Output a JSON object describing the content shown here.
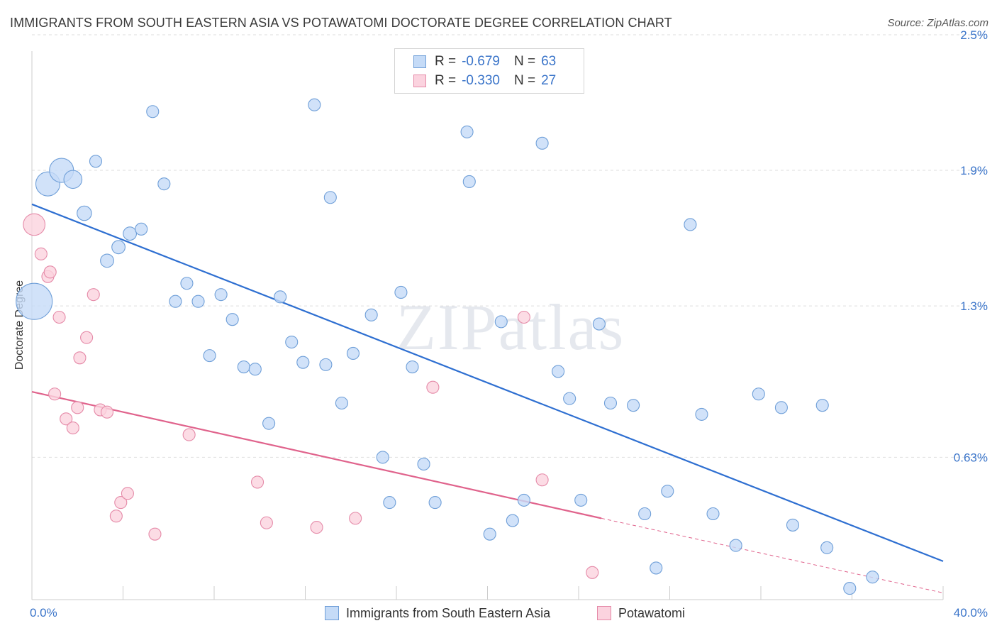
{
  "title": "IMMIGRANTS FROM SOUTH EASTERN ASIA VS POTAWATOMI DOCTORATE DEGREE CORRELATION CHART",
  "source": "Source: ZipAtlas.com",
  "legend": {
    "r_label": "R =",
    "n_label": "N =",
    "series1": {
      "r": "-0.679",
      "n": "63"
    },
    "series2": {
      "r": "-0.330",
      "n": "27"
    }
  },
  "colors": {
    "blue_fill": "#c5dbf7",
    "blue_stroke": "#6f9fd8",
    "blue_line": "#2e6fd1",
    "pink_fill": "#fbd3df",
    "pink_stroke": "#e58aa8",
    "pink_line": "#e0638c"
  },
  "chart_data": {
    "type": "scatter",
    "title": "IMMIGRANTS FROM SOUTH EASTERN ASIA VS POTAWATOMI DOCTORATE DEGREE CORRELATION CHART",
    "xlabel": "",
    "ylabel": "Doctorate Degree",
    "xlim": [
      0,
      40
    ],
    "ylim": [
      0,
      2.4
    ],
    "x_tick_labels": [
      {
        "value": 0,
        "label": "0.0%"
      },
      {
        "value": 40,
        "label": "40.0%"
      }
    ],
    "y_tick_labels": [
      {
        "value": 0.63,
        "label": "0.63%"
      },
      {
        "value": 1.3,
        "label": "1.3%"
      },
      {
        "value": 1.9,
        "label": "1.9%"
      },
      {
        "value": 2.5,
        "label": "2.5%"
      }
    ],
    "watermark": "ZIPatlas",
    "series": [
      {
        "name": "Immigrants from South Eastern Asia",
        "color": "blue",
        "trend": {
          "x0": 0,
          "y0": 1.75,
          "x1": 40,
          "y1": 0.17
        },
        "points": [
          {
            "x": 0.1,
            "y": 1.32,
            "s": 3
          },
          {
            "x": 0.7,
            "y": 1.84,
            "s": 2
          },
          {
            "x": 1.3,
            "y": 1.9,
            "s": 2
          },
          {
            "x": 1.8,
            "y": 1.86,
            "s": 1.5
          },
          {
            "x": 2.3,
            "y": 1.71,
            "s": 1.2
          },
          {
            "x": 2.8,
            "y": 1.94,
            "s": 1
          },
          {
            "x": 3.3,
            "y": 1.5,
            "s": 1.1
          },
          {
            "x": 3.8,
            "y": 1.56,
            "s": 1.1
          },
          {
            "x": 4.3,
            "y": 1.62,
            "s": 1.1
          },
          {
            "x": 4.8,
            "y": 1.64,
            "s": 1
          },
          {
            "x": 5.3,
            "y": 2.16,
            "s": 1
          },
          {
            "x": 5.8,
            "y": 1.84,
            "s": 1
          },
          {
            "x": 6.3,
            "y": 1.32,
            "s": 1
          },
          {
            "x": 6.8,
            "y": 1.4,
            "s": 1
          },
          {
            "x": 7.3,
            "y": 1.32,
            "s": 1
          },
          {
            "x": 7.8,
            "y": 1.08,
            "s": 1
          },
          {
            "x": 8.3,
            "y": 1.35,
            "s": 1
          },
          {
            "x": 8.8,
            "y": 1.24,
            "s": 1
          },
          {
            "x": 9.3,
            "y": 1.03,
            "s": 1
          },
          {
            "x": 9.8,
            "y": 1.02,
            "s": 1
          },
          {
            "x": 10.4,
            "y": 0.78,
            "s": 1
          },
          {
            "x": 10.9,
            "y": 1.34,
            "s": 1
          },
          {
            "x": 11.4,
            "y": 1.14,
            "s": 1
          },
          {
            "x": 11.9,
            "y": 1.05,
            "s": 1
          },
          {
            "x": 12.4,
            "y": 2.19,
            "s": 1
          },
          {
            "x": 12.9,
            "y": 1.04,
            "s": 1
          },
          {
            "x": 13.1,
            "y": 1.78,
            "s": 1
          },
          {
            "x": 13.6,
            "y": 0.87,
            "s": 1
          },
          {
            "x": 14.1,
            "y": 1.09,
            "s": 1
          },
          {
            "x": 14.9,
            "y": 1.26,
            "s": 1
          },
          {
            "x": 15.4,
            "y": 0.63,
            "s": 1
          },
          {
            "x": 15.7,
            "y": 0.43,
            "s": 1
          },
          {
            "x": 16.2,
            "y": 1.36,
            "s": 1
          },
          {
            "x": 16.7,
            "y": 1.03,
            "s": 1
          },
          {
            "x": 17.2,
            "y": 0.6,
            "s": 1
          },
          {
            "x": 17.7,
            "y": 0.43,
            "s": 1
          },
          {
            "x": 19.1,
            "y": 2.07,
            "s": 1
          },
          {
            "x": 19.2,
            "y": 1.85,
            "s": 1
          },
          {
            "x": 20.1,
            "y": 0.29,
            "s": 1
          },
          {
            "x": 20.6,
            "y": 1.23,
            "s": 1
          },
          {
            "x": 21.1,
            "y": 0.35,
            "s": 1
          },
          {
            "x": 21.6,
            "y": 0.44,
            "s": 1
          },
          {
            "x": 22.4,
            "y": 2.02,
            "s": 1
          },
          {
            "x": 23.1,
            "y": 1.01,
            "s": 1
          },
          {
            "x": 23.6,
            "y": 0.89,
            "s": 1
          },
          {
            "x": 24.1,
            "y": 0.44,
            "s": 1
          },
          {
            "x": 24.9,
            "y": 1.22,
            "s": 1
          },
          {
            "x": 25.4,
            "y": 0.87,
            "s": 1
          },
          {
            "x": 26.4,
            "y": 0.86,
            "s": 1
          },
          {
            "x": 26.9,
            "y": 0.38,
            "s": 1
          },
          {
            "x": 27.4,
            "y": 0.14,
            "s": 1
          },
          {
            "x": 27.9,
            "y": 0.48,
            "s": 1
          },
          {
            "x": 28.9,
            "y": 1.66,
            "s": 1
          },
          {
            "x": 29.4,
            "y": 0.82,
            "s": 1
          },
          {
            "x": 29.9,
            "y": 0.38,
            "s": 1
          },
          {
            "x": 30.9,
            "y": 0.24,
            "s": 1
          },
          {
            "x": 31.9,
            "y": 0.91,
            "s": 1
          },
          {
            "x": 32.9,
            "y": 0.85,
            "s": 1
          },
          {
            "x": 33.4,
            "y": 0.33,
            "s": 1
          },
          {
            "x": 34.7,
            "y": 0.86,
            "s": 1
          },
          {
            "x": 34.9,
            "y": 0.23,
            "s": 1
          },
          {
            "x": 35.9,
            "y": 0.05,
            "s": 1
          },
          {
            "x": 36.9,
            "y": 0.1,
            "s": 1
          }
        ]
      },
      {
        "name": "Potawatomi",
        "color": "pink",
        "trend": {
          "x0": 0,
          "y0": 0.92,
          "x1": 25,
          "y1": 0.36,
          "dashed_to": {
            "x": 40,
            "y": 0.03
          }
        },
        "points": [
          {
            "x": 0.1,
            "y": 1.66,
            "s": 1.8
          },
          {
            "x": 0.4,
            "y": 1.53,
            "s": 1
          },
          {
            "x": 0.7,
            "y": 1.43,
            "s": 1
          },
          {
            "x": 0.8,
            "y": 1.45,
            "s": 1
          },
          {
            "x": 1.0,
            "y": 0.91,
            "s": 1
          },
          {
            "x": 1.2,
            "y": 1.25,
            "s": 1
          },
          {
            "x": 1.5,
            "y": 0.8,
            "s": 1
          },
          {
            "x": 1.8,
            "y": 0.76,
            "s": 1
          },
          {
            "x": 2.0,
            "y": 0.85,
            "s": 1
          },
          {
            "x": 2.1,
            "y": 1.07,
            "s": 1
          },
          {
            "x": 2.4,
            "y": 1.16,
            "s": 1
          },
          {
            "x": 2.7,
            "y": 1.35,
            "s": 1
          },
          {
            "x": 3.0,
            "y": 0.84,
            "s": 1
          },
          {
            "x": 3.3,
            "y": 0.83,
            "s": 1
          },
          {
            "x": 3.7,
            "y": 0.37,
            "s": 1
          },
          {
            "x": 3.9,
            "y": 0.43,
            "s": 1
          },
          {
            "x": 4.2,
            "y": 0.47,
            "s": 1
          },
          {
            "x": 5.4,
            "y": 0.29,
            "s": 1
          },
          {
            "x": 6.9,
            "y": 0.73,
            "s": 1
          },
          {
            "x": 9.9,
            "y": 0.52,
            "s": 1
          },
          {
            "x": 10.3,
            "y": 0.34,
            "s": 1
          },
          {
            "x": 12.5,
            "y": 0.32,
            "s": 1
          },
          {
            "x": 14.2,
            "y": 0.36,
            "s": 1
          },
          {
            "x": 17.6,
            "y": 0.94,
            "s": 1
          },
          {
            "x": 21.6,
            "y": 1.25,
            "s": 1
          },
          {
            "x": 22.4,
            "y": 0.53,
            "s": 1
          },
          {
            "x": 24.6,
            "y": 0.12,
            "s": 1
          }
        ]
      }
    ]
  },
  "bottom_legend": {
    "series1": "Immigrants from South Eastern Asia",
    "series2": "Potawatomi"
  }
}
